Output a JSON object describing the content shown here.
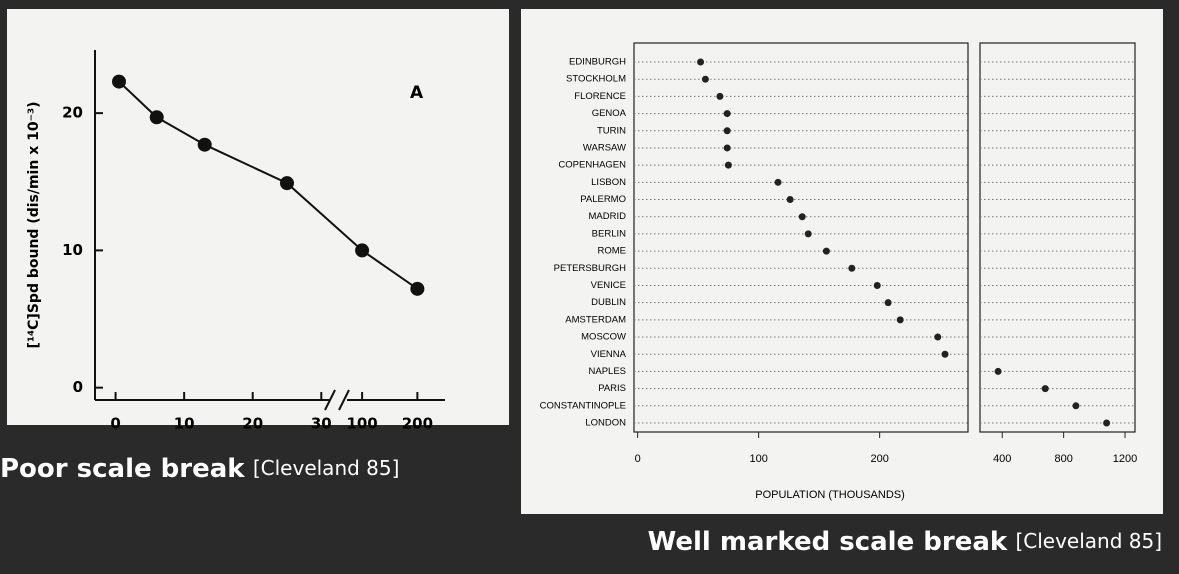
{
  "chart_data": [
    {
      "type": "line",
      "annotation": "A",
      "ylabel": "[¹⁴C]Spd bound (dis/min x 10⁻³)",
      "x": [
        0.5,
        6,
        13,
        25,
        100,
        200
      ],
      "values": [
        22.3,
        19.7,
        17.7,
        14.9,
        10,
        7.2
      ],
      "color": "#111111",
      "ylim": [
        -0.9,
        24.6
      ],
      "yticks": [
        0,
        10,
        20
      ],
      "x_segments": [
        {
          "xlim": [
            -3,
            32
          ],
          "xticks": [
            0,
            10,
            20,
            30
          ]
        },
        {
          "xlim": [
            60,
            250
          ],
          "xticks": [
            100,
            200
          ]
        }
      ]
    },
    {
      "type": "dot",
      "xlabel": "POPULATION (THOUSANDS)",
      "color": "#222222",
      "categories": [
        "EDINBURGH",
        "STOCKHOLM",
        "FLORENCE",
        "GENOA",
        "TURIN",
        "WARSAW",
        "COPENHAGEN",
        "LISBON",
        "PALERMO",
        "MADRID",
        "BERLIN",
        "ROME",
        "PETERSBURGH",
        "VENICE",
        "DUBLIN",
        "AMSTERDAM",
        "MOSCOW",
        "VIENNA",
        "NAPLES",
        "PARIS",
        "CONSTANTINOPLE",
        "LONDON"
      ],
      "values": [
        52,
        56,
        68,
        74,
        74,
        74,
        75,
        116,
        126,
        136,
        141,
        156,
        177,
        198,
        207,
        217,
        248,
        254,
        373,
        680,
        880,
        1080
      ],
      "x_segments": [
        {
          "xlim": [
            -3,
            273
          ],
          "xticks": [
            0,
            100,
            200
          ]
        },
        {
          "xlim": [
            255,
            1265
          ],
          "xticks": [
            400,
            800,
            1200
          ]
        }
      ]
    }
  ],
  "captions": [
    {
      "bold": "Poor scale break",
      "cite": "[Cleveland 85]"
    },
    {
      "bold": "Well marked scale break",
      "cite": "[Cleveland 85]"
    }
  ]
}
